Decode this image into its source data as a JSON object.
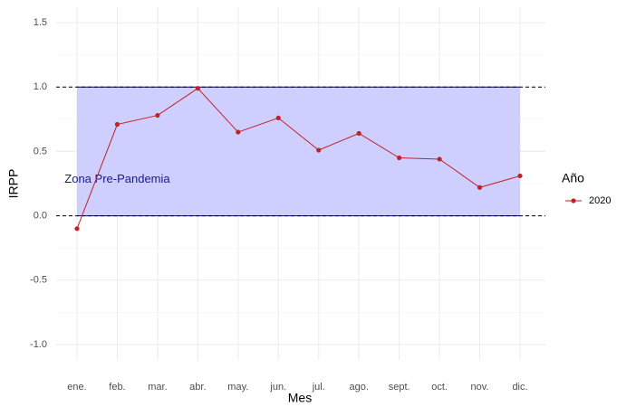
{
  "chart_data": {
    "type": "line",
    "x_label": "Mes",
    "y_label": "IRPP",
    "categories": [
      "ene.",
      "feb.",
      "mar.",
      "abr.",
      "may.",
      "jun.",
      "jul.",
      "ago.",
      "sept.",
      "oct.",
      "nov.",
      "dic."
    ],
    "series": [
      {
        "name": "2020",
        "color": "#c0222a",
        "values": [
          -0.1,
          0.71,
          0.78,
          0.99,
          0.65,
          0.76,
          0.51,
          0.64,
          0.45,
          0.44,
          0.22,
          0.31
        ]
      }
    ],
    "legend_title": "Año",
    "zone": {
      "label": "Zona Pre-Pandemia",
      "ymin": 0,
      "ymax": 1,
      "label_y": 0.28,
      "color": "#ccccff",
      "border": "#00008b"
    },
    "hlines": [
      0,
      1
    ],
    "ylim": [
      -1.12,
      1.62
    ],
    "yticks": [
      -1.0,
      -0.5,
      0.0,
      0.5,
      1.0,
      1.5
    ],
    "grid": true
  }
}
